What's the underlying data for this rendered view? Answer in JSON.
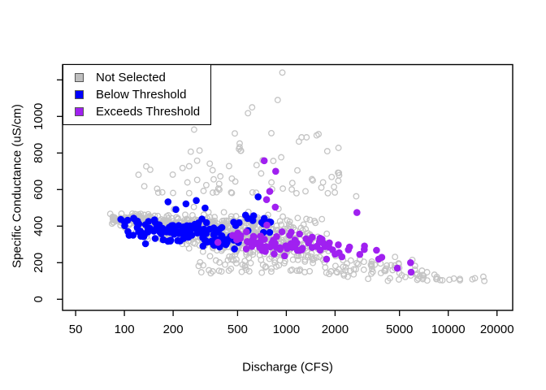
{
  "figure": {
    "background": "#FFFFFF"
  },
  "chart_data": {
    "type": "scatter",
    "title": "",
    "x_axis": {
      "label": "Discharge (CFS)",
      "scale": "log10",
      "min": 42,
      "max": 25600,
      "ticks": [
        {
          "value": 50,
          "label": "50"
        },
        {
          "value": 100,
          "label": "100"
        },
        {
          "value": 200,
          "label": "200"
        },
        {
          "value": 500,
          "label": "500"
        },
        {
          "value": 1000,
          "label": "1000"
        },
        {
          "value": 2000,
          "label": "2000"
        },
        {
          "value": 5000,
          "label": "5000"
        },
        {
          "value": 10000,
          "label": "10000"
        },
        {
          "value": 20000,
          "label": "20000"
        }
      ]
    },
    "y_axis": {
      "label": "Specific Conductance (uS/cm)",
      "scale": "linear",
      "min": -55,
      "max": 1280,
      "ticks": [
        {
          "value": 0,
          "label": "0"
        },
        {
          "value": 200,
          "label": "200"
        },
        {
          "value": 400,
          "label": "400"
        },
        {
          "value": 600,
          "label": "600"
        },
        {
          "value": 800,
          "label": "800"
        },
        {
          "value": 1000,
          "label": "1000"
        },
        {
          "value": 1200,
          "label": ""
        }
      ]
    },
    "legend": {
      "position": "topleft",
      "entries": [
        {
          "label": "Not Selected",
          "color": "#BEBEBE"
        },
        {
          "label": "Below Threshold",
          "color": "#0000FF"
        },
        {
          "label": "Exceeds Threshold",
          "color": "#A020F0"
        }
      ]
    },
    "point_style": {
      "open_radius": 3.3,
      "open_stroke_width": 1.3,
      "filled_radius": 4.3
    },
    "grid": false,
    "random_seed": 13,
    "series": [
      {
        "name": "Not Selected",
        "color": "#C4C4C4",
        "marker": "open-circle",
        "clusters": [
          {
            "n": 70,
            "lx": [
              1.9,
              2.16
            ],
            "xdist": "uniform",
            "y_center": [
              433,
              428
            ],
            "y_sd": [
              13,
              22
            ]
          },
          {
            "n": 610,
            "lx": [
              1.98,
              3.3
            ],
            "xdist": "triangular",
            "y_center": [
              428,
              280
            ],
            "y_sd": [
              24,
              84
            ],
            "y_clamp": [
              150,
              648
            ]
          },
          {
            "n": 60,
            "lx": [
              2.42,
              3.42
            ],
            "xdist": "uniform",
            "y_band": [
              136,
              235
            ]
          },
          {
            "n": 58,
            "lx": [
              2.06,
              3.36
            ],
            "xdist": "uniform",
            "y_band": [
              580,
              780
            ],
            "band_pow": 1.6
          },
          {
            "n": 12,
            "lx": [
              2.3,
              3.3
            ],
            "xdist": "uniform",
            "y_band": [
              780,
              935
            ]
          },
          {
            "n": 62,
            "lx": [
              3.28,
              3.93
            ],
            "xdist": "uniform",
            "y_center": [
              210,
              115
            ],
            "y_sd": [
              38,
              20
            ],
            "y_clamp": [
              98,
              340
            ]
          },
          {
            "n": 8,
            "lx": [
              3.9,
              4.24
            ],
            "xdist": "uniform",
            "y_band": [
              96,
              130
            ]
          }
        ],
        "points": [
          [
            945,
            1240
          ],
          [
            885,
            1090
          ],
          [
            615,
            1050
          ],
          [
            580,
            1018
          ],
          [
            515,
            852
          ],
          [
            510,
            822
          ],
          [
            522,
            812
          ],
          [
            1790,
            810
          ],
          [
            2100,
            828
          ],
          [
            2700,
            563
          ],
          [
            6000,
            215
          ],
          [
            4950,
            192
          ],
          [
            7000,
            118
          ],
          [
            7400,
            148
          ],
          [
            9200,
            104
          ],
          [
            11800,
            111
          ],
          [
            14600,
            115
          ],
          [
            16700,
            100
          ]
        ]
      },
      {
        "name": "Below Threshold",
        "color": "#0000FF",
        "marker": "filled-circle",
        "clusters": [
          {
            "n": 125,
            "lx": [
              1.99,
              2.72
            ],
            "xdist": "uniform",
            "y_center": [
              402,
              332
            ],
            "y_sd": [
              36,
              42
            ],
            "y_clamp": [
              272,
              480
            ]
          },
          {
            "n": 12,
            "lx": [
              2.7,
              2.95
            ],
            "xdist": "uniform",
            "y_center": [
              420,
              400
            ],
            "y_sd": [
              28,
              28
            ],
            "y_clamp": [
              330,
              472
            ]
          }
        ],
        "points": [
          [
            95,
            437
          ],
          [
            100,
            424
          ],
          [
            186,
            533
          ],
          [
            208,
            491
          ],
          [
            278,
            540
          ],
          [
            315,
            499
          ],
          [
            670,
            560
          ],
          [
            560,
            460
          ],
          [
            800,
            422
          ],
          [
            240,
            522
          ],
          [
            135,
            408
          ],
          [
            120,
            392
          ]
        ]
      },
      {
        "name": "Exceeds Threshold",
        "color": "#A020F0",
        "marker": "filled-circle",
        "clusters": [
          {
            "n": 70,
            "lx": [
              2.66,
              3.28
            ],
            "xdist": "uniform",
            "y_center": [
              318,
              284
            ],
            "y_sd": [
              36,
              33
            ],
            "y_clamp": [
              208,
              408
            ]
          },
          {
            "n": 14,
            "lx": [
              3.24,
              3.6
            ],
            "xdist": "uniform",
            "y_center": [
              256,
              224
            ],
            "y_sd": [
              28,
              24
            ],
            "y_clamp": [
              168,
              320
            ]
          }
        ],
        "points": [
          [
            730,
            758
          ],
          [
            860,
            700
          ],
          [
            790,
            590
          ],
          [
            755,
            545
          ],
          [
            855,
            504
          ],
          [
            378,
            311
          ],
          [
            2730,
            474
          ],
          [
            4850,
            170
          ],
          [
            5850,
            200
          ],
          [
            5900,
            148
          ]
        ]
      }
    ]
  }
}
